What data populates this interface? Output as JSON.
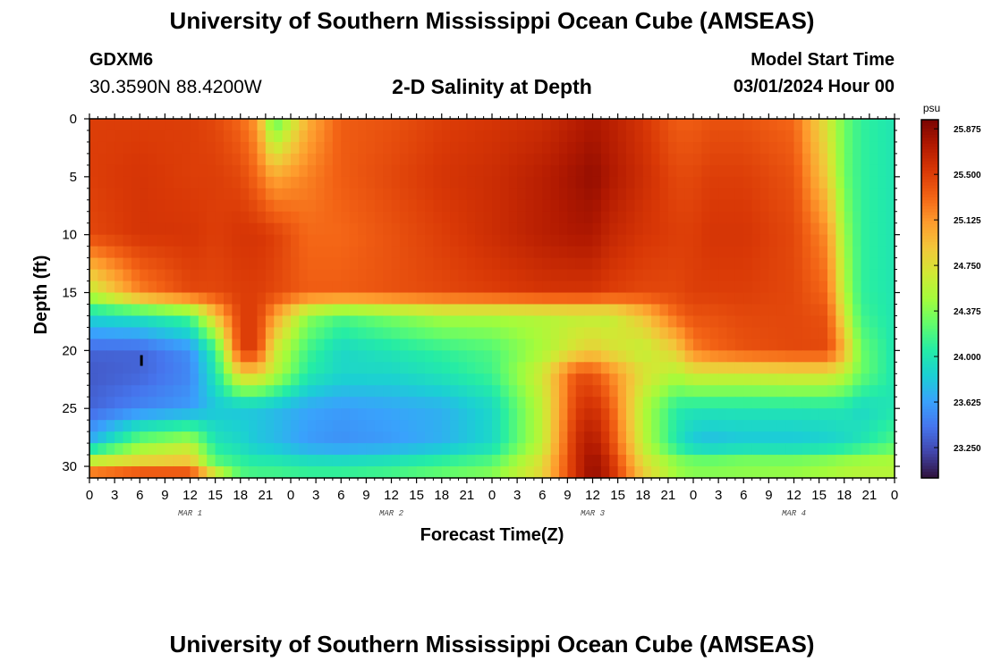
{
  "header": {
    "title_top": "University of Southern Mississippi Ocean Cube (AMSEAS)",
    "title_bottom": "University of Southern Mississippi Ocean Cube (AMSEAS)",
    "station_id": "GDXM6",
    "station_coords": "30.3590N  88.4200W",
    "plot_title": "2-D Salinity at Depth",
    "start_label": "Model Start Time",
    "start_value": "03/01/2024 Hour 00"
  },
  "chart_data": {
    "type": "heatmap",
    "title": "2-D Salinity at Depth",
    "xlabel": "Forecast Time(Z)",
    "ylabel": "Depth (ft)",
    "x_range_hours": [
      0,
      96
    ],
    "y_range_ft": [
      0,
      31
    ],
    "y_reversed": true,
    "x_tick_labels": [
      "0",
      "3",
      "6",
      "9",
      "12",
      "15",
      "18",
      "21",
      "0",
      "3",
      "6",
      "9",
      "12",
      "15",
      "18",
      "21",
      "0",
      "3",
      "6",
      "9",
      "12",
      "15",
      "18",
      "21",
      "0",
      "3",
      "6",
      "9",
      "12",
      "15",
      "18",
      "21",
      "0"
    ],
    "y_tick_labels": [
      "0",
      "5",
      "10",
      "15",
      "20",
      "25",
      "30"
    ],
    "y_tick_values": [
      0,
      5,
      10,
      15,
      20,
      25,
      30
    ],
    "day_labels": [
      "MAR 1",
      "MAR 2",
      "MAR 3",
      "MAR 4"
    ],
    "colorbar": {
      "unit": "psu",
      "min": 23.0,
      "max": 25.95,
      "tick_values": [
        25.875,
        25.5,
        25.125,
        24.75,
        24.375,
        24.0,
        23.625,
        23.25
      ],
      "tick_labels": [
        "25.875",
        "25.500",
        "25.125",
        "24.750",
        "24.375",
        "24.000",
        "23.625",
        "23.250"
      ],
      "colors": [
        "#30123b",
        "#4145ab",
        "#4675ed",
        "#39a2fc",
        "#1bcfd4",
        "#24eca6",
        "#61fc6c",
        "#a4fc3b",
        "#d1e834",
        "#f3c63a",
        "#fe9b2d",
        "#f36315",
        "#d93806",
        "#b11901",
        "#7a0402"
      ]
    },
    "depth_levels_ft": [
      0,
      5,
      10,
      15,
      17,
      20,
      22,
      25,
      28,
      30,
      31
    ],
    "time_knots_hours": [
      0,
      6,
      12,
      15,
      18,
      20,
      22,
      26,
      30,
      36,
      42,
      48,
      54,
      58,
      60,
      62,
      66,
      70,
      72,
      74,
      78,
      84,
      88,
      90,
      92,
      96
    ],
    "salinity_psu": [
      [
        25.5,
        25.5,
        25.5,
        25.45,
        25.3,
        25.1,
        24.2,
        25.0,
        25.35,
        25.4,
        25.5,
        25.55,
        25.6,
        25.7,
        25.75,
        25.7,
        25.55,
        25.35,
        25.35,
        25.4,
        25.4,
        25.3,
        24.7,
        24.3,
        24.1,
        24.0
      ],
      [
        25.5,
        25.55,
        25.5,
        25.5,
        25.45,
        25.3,
        25.05,
        25.2,
        25.35,
        25.45,
        25.55,
        25.6,
        25.7,
        25.8,
        25.85,
        25.75,
        25.6,
        25.45,
        25.45,
        25.5,
        25.5,
        25.4,
        24.85,
        24.3,
        24.1,
        24.0
      ],
      [
        25.45,
        25.55,
        25.55,
        25.5,
        25.55,
        25.55,
        25.5,
        25.3,
        25.3,
        25.4,
        25.5,
        25.6,
        25.7,
        25.75,
        25.75,
        25.65,
        25.55,
        25.5,
        25.5,
        25.55,
        25.55,
        25.45,
        25.15,
        24.45,
        24.1,
        24.0
      ],
      [
        24.6,
        25.2,
        25.45,
        25.45,
        25.5,
        25.5,
        25.45,
        25.35,
        25.35,
        25.4,
        25.45,
        25.5,
        25.55,
        25.55,
        25.55,
        25.5,
        25.45,
        25.45,
        25.5,
        25.5,
        25.5,
        25.45,
        25.3,
        24.55,
        24.1,
        24.0
      ],
      [
        23.9,
        24.0,
        24.2,
        24.9,
        25.5,
        25.5,
        25.1,
        24.4,
        24.2,
        24.35,
        24.5,
        24.5,
        24.55,
        24.6,
        24.6,
        24.6,
        24.9,
        25.3,
        25.4,
        25.4,
        25.45,
        25.45,
        25.4,
        24.7,
        24.15,
        24.0
      ],
      [
        23.35,
        23.35,
        23.55,
        24.1,
        25.5,
        25.5,
        24.7,
        24.15,
        23.9,
        24.0,
        24.1,
        24.2,
        24.5,
        24.75,
        24.85,
        24.75,
        24.6,
        24.85,
        25.2,
        25.3,
        25.4,
        25.45,
        25.45,
        25.0,
        24.3,
        24.0
      ],
      [
        23.3,
        23.35,
        23.5,
        24.0,
        24.85,
        24.85,
        24.6,
        24.05,
        23.9,
        23.9,
        24.0,
        24.15,
        24.7,
        25.4,
        25.4,
        25.2,
        24.75,
        24.55,
        24.7,
        24.7,
        24.7,
        24.75,
        24.75,
        24.6,
        24.3,
        24.0
      ],
      [
        23.35,
        23.5,
        23.6,
        23.8,
        23.8,
        23.8,
        23.75,
        23.65,
        23.6,
        23.65,
        23.7,
        23.9,
        24.6,
        25.5,
        25.6,
        25.4,
        24.55,
        24.05,
        24.0,
        24.0,
        24.0,
        24.0,
        24.0,
        24.0,
        23.9,
        24.0
      ],
      [
        23.7,
        24.35,
        24.55,
        24.0,
        23.9,
        23.8,
        23.75,
        23.6,
        23.55,
        23.6,
        23.7,
        23.9,
        24.6,
        25.6,
        25.75,
        25.5,
        24.6,
        24.0,
        23.8,
        23.75,
        23.8,
        23.8,
        23.85,
        23.9,
        24.0,
        24.2
      ],
      [
        24.9,
        24.95,
        25.0,
        24.3,
        24.15,
        24.1,
        24.1,
        24.05,
        24.05,
        24.1,
        24.2,
        24.3,
        24.8,
        25.6,
        25.85,
        25.65,
        24.8,
        24.5,
        24.45,
        24.45,
        24.5,
        24.5,
        24.55,
        24.6,
        24.6,
        24.6
      ],
      [
        25.5,
        25.75,
        25.7,
        25.0,
        24.25,
        24.2,
        24.2,
        24.15,
        24.15,
        24.2,
        24.3,
        24.4,
        24.8,
        25.6,
        25.85,
        25.65,
        24.9,
        24.4,
        24.3,
        24.3,
        24.3,
        24.35,
        24.4,
        24.45,
        24.5,
        24.5
      ]
    ]
  }
}
